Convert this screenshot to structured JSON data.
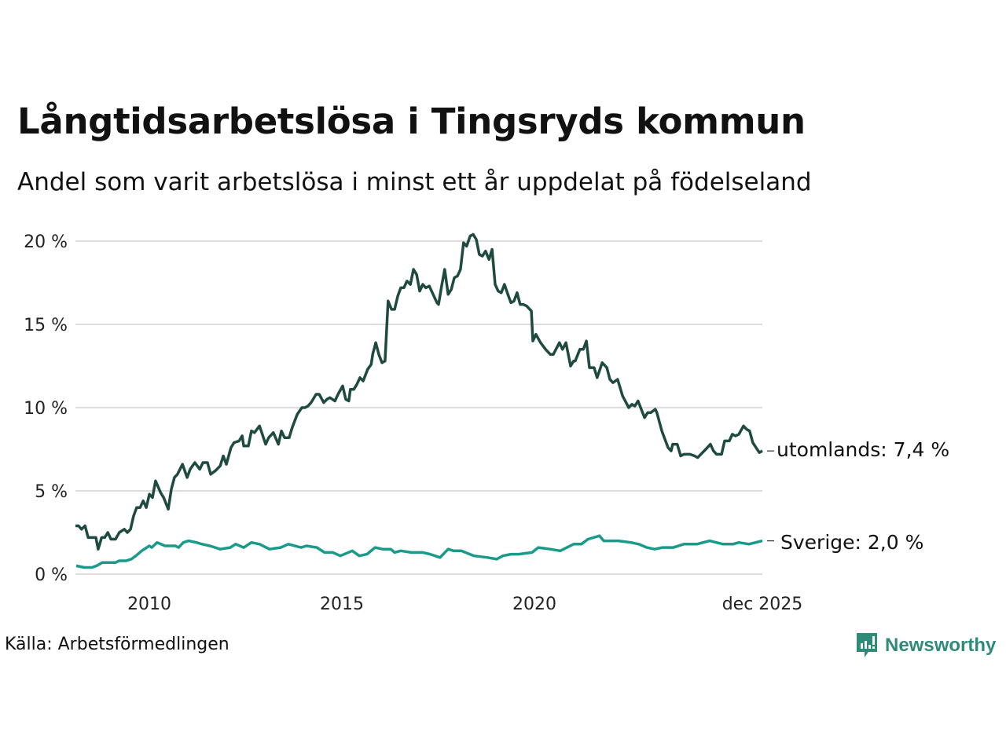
{
  "title": "Långtidsarbetslösa i Tingsryds kommun",
  "subtitle": "Andel som varit arbetslösa i minst ett år uppdelat på födelseland",
  "source": "Källa: Arbetsförmedlingen",
  "logo_text": "Newsworthy",
  "chart_data": {
    "type": "line",
    "title": "Långtidsarbetslösa i Tingsryds kommun",
    "xlabel": "",
    "ylabel": "",
    "xlim": [
      2008.08,
      2025.92
    ],
    "ylim": [
      0,
      20
    ],
    "grid": true,
    "y_ticks": [
      {
        "v": 0,
        "label": "0 %"
      },
      {
        "v": 5,
        "label": "5 %"
      },
      {
        "v": 10,
        "label": "10 %"
      },
      {
        "v": 15,
        "label": "15 %"
      },
      {
        "v": 20,
        "label": "20 %"
      }
    ],
    "x_ticks": [
      {
        "v": 2010,
        "label": "2010"
      },
      {
        "v": 2015,
        "label": "2015"
      },
      {
        "v": 2020,
        "label": "2020"
      },
      {
        "v": 2025.92,
        "label": "dec 2025"
      }
    ],
    "series": [
      {
        "name": "utomlands",
        "end_label": "utomlands: 7,4 %",
        "color": "#1f4a3f",
        "x": [
          2008.08,
          2008.16,
          2008.24,
          2008.33,
          2008.41,
          2008.53,
          2008.61,
          2008.67,
          2008.76,
          2008.84,
          2008.92,
          2009.0,
          2009.12,
          2009.22,
          2009.35,
          2009.43,
          2009.51,
          2009.59,
          2009.67,
          2009.76,
          2009.84,
          2009.92,
          2010.0,
          2010.08,
          2010.16,
          2010.29,
          2010.37,
          2010.49,
          2010.57,
          2010.65,
          2010.73,
          2010.86,
          2010.98,
          2011.06,
          2011.18,
          2011.31,
          2011.39,
          2011.51,
          2011.59,
          2011.71,
          2011.84,
          2011.92,
          2012.0,
          2012.12,
          2012.2,
          2012.33,
          2012.41,
          2012.45,
          2012.57,
          2012.65,
          2012.73,
          2012.86,
          2013.02,
          2013.1,
          2013.22,
          2013.35,
          2013.43,
          2013.51,
          2013.63,
          2013.71,
          2013.84,
          2013.96,
          2014.04,
          2014.12,
          2014.2,
          2014.33,
          2014.41,
          2014.53,
          2014.61,
          2014.69,
          2014.82,
          2014.9,
          2015.02,
          2015.1,
          2015.18,
          2015.22,
          2015.31,
          2015.39,
          2015.47,
          2015.55,
          2015.67,
          2015.76,
          2015.8,
          2015.88,
          2015.96,
          2016.04,
          2016.12,
          2016.2,
          2016.29,
          2016.37,
          2016.45,
          2016.53,
          2016.61,
          2016.69,
          2016.78,
          2016.86,
          2016.94,
          2017.02,
          2017.1,
          2017.18,
          2017.27,
          2017.35,
          2017.47,
          2017.51,
          2017.59,
          2017.67,
          2017.76,
          2017.84,
          2017.92,
          2018.0,
          2018.08,
          2018.16,
          2018.24,
          2018.33,
          2018.41,
          2018.49,
          2018.57,
          2018.65,
          2018.73,
          2018.82,
          2018.9,
          2018.98,
          2019.06,
          2019.14,
          2019.22,
          2019.31,
          2019.39,
          2019.47,
          2019.55,
          2019.63,
          2019.71,
          2019.8,
          2019.92,
          2019.96,
          2020.04,
          2020.16,
          2020.29,
          2020.41,
          2020.49,
          2020.65,
          2020.73,
          2020.82,
          2020.94,
          2021.02,
          2021.06,
          2021.18,
          2021.27,
          2021.35,
          2021.43,
          2021.55,
          2021.63,
          2021.76,
          2021.88,
          2021.96,
          2022.04,
          2022.16,
          2022.29,
          2022.45,
          2022.53,
          2022.61,
          2022.69,
          2022.86,
          2022.94,
          2023.02,
          2023.14,
          2023.18,
          2023.31,
          2023.47,
          2023.55,
          2023.59,
          2023.71,
          2023.8,
          2023.88,
          2024.04,
          2024.16,
          2024.24,
          2024.45,
          2024.57,
          2024.65,
          2024.73,
          2024.86,
          2024.94,
          2025.06,
          2025.14,
          2025.22,
          2025.31,
          2025.43,
          2025.51,
          2025.59,
          2025.67,
          2025.84,
          2025.92
        ],
        "values": [
          2.9,
          2.9,
          2.7,
          2.9,
          2.2,
          2.2,
          2.2,
          1.5,
          2.2,
          2.2,
          2.5,
          2.1,
          2.1,
          2.5,
          2.7,
          2.5,
          2.7,
          3.5,
          4.0,
          4.0,
          4.4,
          4.0,
          4.8,
          4.6,
          5.6,
          4.9,
          4.6,
          3.9,
          5.1,
          5.8,
          6.0,
          6.6,
          5.8,
          6.3,
          6.7,
          6.3,
          6.7,
          6.7,
          6.0,
          6.2,
          6.5,
          7.1,
          6.6,
          7.6,
          7.9,
          8.0,
          8.3,
          7.7,
          7.7,
          8.6,
          8.5,
          8.9,
          7.8,
          8.2,
          8.5,
          7.8,
          8.6,
          8.2,
          8.2,
          8.8,
          9.6,
          10.0,
          10.0,
          10.1,
          10.3,
          10.8,
          10.8,
          10.3,
          10.5,
          10.6,
          10.4,
          10.8,
          11.3,
          10.5,
          10.4,
          11.1,
          11.1,
          11.4,
          11.8,
          11.6,
          12.3,
          12.6,
          13.2,
          13.9,
          13.2,
          12.7,
          12.8,
          16.4,
          15.9,
          15.9,
          16.7,
          17.2,
          17.2,
          17.6,
          17.4,
          18.3,
          18.0,
          17.0,
          17.4,
          17.2,
          17.3,
          16.9,
          16.3,
          16.2,
          17.3,
          18.3,
          16.8,
          17.1,
          17.8,
          17.9,
          18.3,
          19.9,
          19.7,
          20.3,
          20.4,
          20.1,
          19.2,
          19.1,
          19.4,
          18.9,
          19.5,
          17.4,
          17.0,
          16.9,
          17.4,
          16.8,
          16.3,
          16.4,
          16.9,
          16.2,
          16.2,
          16.1,
          15.8,
          14.0,
          14.4,
          13.9,
          13.5,
          13.2,
          13.2,
          13.9,
          13.5,
          13.9,
          12.5,
          12.8,
          12.8,
          13.5,
          13.5,
          14.0,
          12.4,
          12.4,
          11.8,
          12.7,
          12.4,
          11.7,
          11.5,
          11.7,
          10.7,
          10.0,
          10.2,
          10.1,
          10.4,
          9.4,
          9.7,
          9.7,
          9.9,
          9.7,
          8.6,
          7.6,
          7.4,
          7.8,
          7.8,
          7.1,
          7.2,
          7.2,
          7.1,
          7.0,
          7.5,
          7.8,
          7.4,
          7.2,
          7.2,
          8.0,
          8.0,
          8.4,
          8.3,
          8.4,
          8.9,
          8.7,
          8.6,
          7.9,
          7.3,
          7.4
        ]
      },
      {
        "name": "Sverige",
        "end_label": "Sverige: 2,0 %",
        "color": "#1a9a89",
        "x": [
          2008.1,
          2008.31,
          2008.51,
          2008.63,
          2008.78,
          2009.12,
          2009.22,
          2009.39,
          2009.53,
          2009.65,
          2009.8,
          2010.0,
          2010.06,
          2010.2,
          2010.41,
          2010.67,
          2010.76,
          2010.88,
          2011.02,
          2011.22,
          2011.37,
          2011.57,
          2011.84,
          2012.1,
          2012.24,
          2012.45,
          2012.65,
          2012.86,
          2013.12,
          2013.41,
          2013.61,
          2013.94,
          2014.08,
          2014.35,
          2014.55,
          2014.76,
          2014.96,
          2015.27,
          2015.45,
          2015.65,
          2015.86,
          2016.06,
          2016.27,
          2016.37,
          2016.53,
          2016.8,
          2017.1,
          2017.29,
          2017.55,
          2017.76,
          2017.9,
          2018.1,
          2018.43,
          2018.78,
          2019.02,
          2019.18,
          2019.39,
          2019.59,
          2019.94,
          2020.1,
          2020.41,
          2020.67,
          2021.02,
          2021.22,
          2021.39,
          2021.69,
          2021.8,
          2022.18,
          2022.51,
          2022.71,
          2022.92,
          2023.12,
          2023.33,
          2023.61,
          2023.88,
          2024.22,
          2024.55,
          2024.9,
          2025.16,
          2025.31,
          2025.57,
          2025.92
        ],
        "values": [
          0.5,
          0.4,
          0.4,
          0.5,
          0.7,
          0.7,
          0.8,
          0.8,
          0.9,
          1.1,
          1.4,
          1.7,
          1.6,
          1.9,
          1.7,
          1.7,
          1.6,
          1.9,
          2.0,
          1.9,
          1.8,
          1.7,
          1.5,
          1.6,
          1.8,
          1.6,
          1.9,
          1.8,
          1.5,
          1.6,
          1.8,
          1.6,
          1.7,
          1.6,
          1.3,
          1.3,
          1.1,
          1.4,
          1.1,
          1.2,
          1.6,
          1.5,
          1.5,
          1.3,
          1.4,
          1.3,
          1.3,
          1.2,
          1.0,
          1.5,
          1.4,
          1.4,
          1.1,
          1.0,
          0.9,
          1.1,
          1.2,
          1.2,
          1.3,
          1.6,
          1.5,
          1.4,
          1.8,
          1.8,
          2.1,
          2.3,
          2.0,
          2.0,
          1.9,
          1.8,
          1.6,
          1.5,
          1.6,
          1.6,
          1.8,
          1.8,
          2.0,
          1.8,
          1.8,
          1.9,
          1.8,
          2.0
        ]
      }
    ]
  }
}
